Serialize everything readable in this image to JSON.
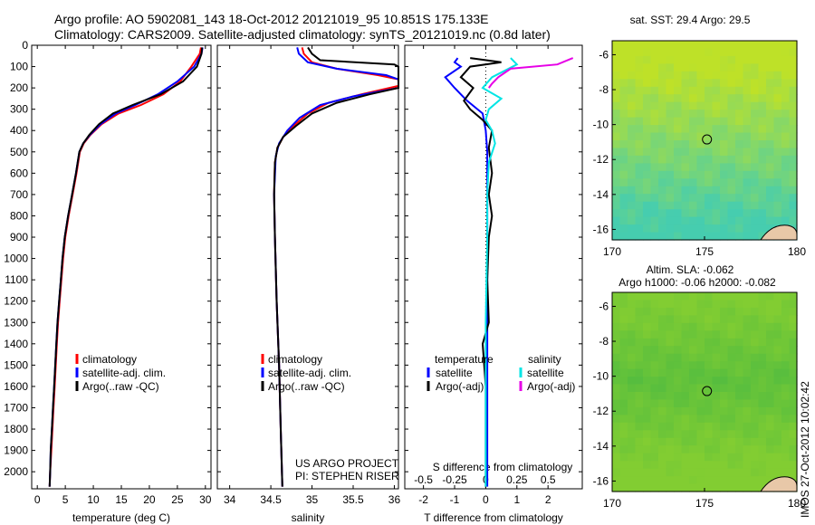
{
  "header": {
    "line1": "Argo profile: AO 5902081_143 18-Oct-2012 20121019_95 10.851S 175.133E",
    "line2": "Climatology: CARS2009. Satellite-adjusted climatology: synTS_20121019.nc (0.8d later)"
  },
  "footer": {
    "imos_stamp": "IMOS 27-Oct-2012 10:02:42"
  },
  "colors": {
    "climatology": "#ff0000",
    "satellite": "#0000ff",
    "argo": "#000000",
    "satellite_s": "#00e5e5",
    "argo_s": "#e600e6"
  },
  "chart_data": [
    {
      "type": "line",
      "name": "temperature-panel",
      "xlabel": "temperature (deg C)",
      "ylabel": "",
      "xlim": [
        -1,
        31
      ],
      "ylim": [
        2080,
        0
      ],
      "xticks": [
        0,
        5,
        10,
        15,
        20,
        25,
        30
      ],
      "yticks": [
        0,
        100,
        200,
        300,
        400,
        500,
        600,
        700,
        800,
        900,
        1000,
        1100,
        1200,
        1300,
        1400,
        1500,
        1600,
        1700,
        1800,
        1900,
        2000
      ],
      "legend": [
        "climatology",
        "satellite-adj. clim.",
        "Argo(..raw -QC)"
      ],
      "series": [
        {
          "name": "climatology",
          "color": "#ff0000",
          "points": [
            [
              29.2,
              10
            ],
            [
              29.0,
              40
            ],
            [
              27.5,
              100
            ],
            [
              25.5,
              170
            ],
            [
              22.5,
              230
            ],
            [
              18.5,
              280
            ],
            [
              14.5,
              320
            ],
            [
              11.5,
              370
            ],
            [
              9.5,
              420
            ],
            [
              8.3,
              460
            ],
            [
              7.6,
              500
            ],
            [
              7.0,
              600
            ],
            [
              6.3,
              700
            ],
            [
              5.6,
              800
            ],
            [
              5.0,
              900
            ],
            [
              4.6,
              1000
            ],
            [
              4.3,
              1100
            ],
            [
              4.0,
              1200
            ],
            [
              3.7,
              1300
            ],
            [
              3.5,
              1400
            ],
            [
              3.3,
              1500
            ],
            [
              3.1,
              1600
            ],
            [
              2.9,
              1700
            ],
            [
              2.7,
              1800
            ],
            [
              2.5,
              1900
            ],
            [
              2.3,
              2000
            ],
            [
              2.2,
              2070
            ]
          ]
        },
        {
          "name": "satellite-adj. clim.",
          "color": "#0000ff",
          "points": [
            [
              29.5,
              10
            ],
            [
              29.3,
              40
            ],
            [
              28.0,
              100
            ],
            [
              25.0,
              170
            ],
            [
              21.5,
              230
            ],
            [
              17.5,
              280
            ],
            [
              14.0,
              320
            ],
            [
              11.3,
              370
            ],
            [
              9.4,
              420
            ],
            [
              8.2,
              460
            ],
            [
              7.5,
              500
            ],
            [
              6.9,
              600
            ],
            [
              6.2,
              700
            ],
            [
              5.5,
              800
            ],
            [
              4.9,
              900
            ],
            [
              4.5,
              1000
            ],
            [
              4.2,
              1100
            ],
            [
              3.9,
              1200
            ],
            [
              3.6,
              1300
            ],
            [
              3.4,
              1400
            ],
            [
              3.2,
              1500
            ],
            [
              3.0,
              1600
            ],
            [
              2.8,
              1700
            ],
            [
              2.6,
              1800
            ],
            [
              2.4,
              1900
            ],
            [
              2.3,
              2000
            ],
            [
              2.2,
              2070
            ]
          ]
        },
        {
          "name": "Argo(..raw -QC)",
          "color": "#000000",
          "points": [
            [
              29.4,
              10
            ],
            [
              29.3,
              40
            ],
            [
              28.5,
              100
            ],
            [
              26.0,
              170
            ],
            [
              22.0,
              230
            ],
            [
              17.0,
              280
            ],
            [
              13.5,
              320
            ],
            [
              11.0,
              370
            ],
            [
              9.3,
              420
            ],
            [
              8.2,
              460
            ],
            [
              7.5,
              500
            ],
            [
              6.9,
              600
            ],
            [
              6.2,
              700
            ],
            [
              5.5,
              800
            ],
            [
              4.9,
              900
            ],
            [
              4.5,
              1000
            ],
            [
              4.2,
              1100
            ],
            [
              3.9,
              1200
            ],
            [
              3.6,
              1300
            ],
            [
              3.4,
              1400
            ],
            [
              3.2,
              1500
            ],
            [
              3.0,
              1600
            ],
            [
              2.8,
              1700
            ],
            [
              2.6,
              1800
            ],
            [
              2.4,
              1900
            ],
            [
              2.3,
              2000
            ],
            [
              2.2,
              2070
            ]
          ]
        }
      ]
    },
    {
      "type": "line",
      "name": "salinity-panel",
      "xlabel": "salinity",
      "ylabel": "",
      "xlim": [
        33.85,
        36.05
      ],
      "ylim": [
        2080,
        0
      ],
      "xticks": [
        34,
        34.5,
        35,
        35.5,
        36
      ],
      "legend": [
        "climatology",
        "satellite-adj. clim.",
        "Argo(..raw -QC)"
      ],
      "annotation": [
        "US ARGO PROJECT",
        "PI: STEPHEN RISER"
      ],
      "series": [
        {
          "name": "climatology",
          "color": "#ff0000",
          "points": [
            [
              34.88,
              10
            ],
            [
              34.9,
              40
            ],
            [
              35.0,
              80
            ],
            [
              35.3,
              110
            ],
            [
              35.8,
              140
            ],
            [
              36.05,
              160
            ],
            [
              36.05,
              190
            ],
            [
              35.6,
              230
            ],
            [
              35.2,
              270
            ],
            [
              34.95,
              320
            ],
            [
              34.8,
              370
            ],
            [
              34.65,
              430
            ],
            [
              34.58,
              480
            ],
            [
              34.55,
              550
            ],
            [
              34.54,
              700
            ],
            [
              34.55,
              900
            ],
            [
              34.57,
              1200
            ],
            [
              34.6,
              1500
            ],
            [
              34.62,
              1800
            ],
            [
              34.64,
              2070
            ]
          ]
        },
        {
          "name": "satellite-adj. clim.",
          "color": "#0000ff",
          "points": [
            [
              34.82,
              10
            ],
            [
              34.84,
              40
            ],
            [
              34.95,
              80
            ],
            [
              35.3,
              110
            ],
            [
              35.9,
              140
            ],
            [
              36.05,
              160
            ],
            [
              36.05,
              200
            ],
            [
              35.5,
              240
            ],
            [
              35.1,
              280
            ],
            [
              34.85,
              340
            ],
            [
              34.7,
              400
            ],
            [
              34.6,
              460
            ],
            [
              34.56,
              520
            ],
            [
              34.54,
              700
            ],
            [
              34.55,
              900
            ],
            [
              34.57,
              1200
            ],
            [
              34.6,
              1500
            ],
            [
              34.62,
              1800
            ],
            [
              34.64,
              2070
            ]
          ]
        },
        {
          "name": "Argo(..raw -QC)",
          "color": "#000000",
          "points": [
            [
              34.95,
              10
            ],
            [
              35.0,
              40
            ],
            [
              35.1,
              70
            ],
            [
              36.0,
              90
            ],
            [
              36.05,
              100
            ],
            [
              36.05,
              200
            ],
            [
              35.7,
              230
            ],
            [
              35.3,
              270
            ],
            [
              35.0,
              320
            ],
            [
              34.8,
              380
            ],
            [
              34.65,
              430
            ],
            [
              34.58,
              480
            ],
            [
              34.55,
              550
            ],
            [
              34.54,
              700
            ],
            [
              34.55,
              900
            ],
            [
              34.57,
              1200
            ],
            [
              34.6,
              1500
            ],
            [
              34.62,
              1800
            ],
            [
              34.64,
              2070
            ]
          ]
        }
      ]
    },
    {
      "type": "line",
      "name": "difference-panel",
      "xlabel": "T difference from climatology",
      "title_bottom": "S difference from climatology",
      "xlim": [
        -2.6,
        3.1
      ],
      "ylim": [
        2080,
        0
      ],
      "xticks": [
        -2,
        -1,
        0,
        1,
        2
      ],
      "xticks_top": [
        -0.5,
        -0.25,
        0,
        0.25,
        0.5
      ],
      "legend_t": [
        "temperature",
        "satellite",
        "Argo(-adj)"
      ],
      "legend_s": [
        "salinity",
        "satellite",
        "Argo(-adj)"
      ],
      "series": [
        {
          "name": "temperature satellite",
          "color": "#0000ff",
          "points": [
            [
              -0.9,
              60
            ],
            [
              -1.0,
              80
            ],
            [
              -0.8,
              100
            ],
            [
              -1.3,
              150
            ],
            [
              -1.0,
              200
            ],
            [
              -0.6,
              260
            ],
            [
              -0.1,
              320
            ],
            [
              0.0,
              400
            ],
            [
              0.05,
              500
            ],
            [
              0.05,
              600
            ],
            [
              0.05,
              800
            ],
            [
              0.05,
              1000
            ],
            [
              0.05,
              1300
            ],
            [
              0.05,
              1600
            ],
            [
              0.05,
              2000
            ],
            [
              0.05,
              2070
            ]
          ]
        },
        {
          "name": "temperature Argo(-adj)",
          "color": "#000000",
          "points": [
            [
              -0.5,
              60
            ],
            [
              0.5,
              80
            ],
            [
              -0.5,
              100
            ],
            [
              -0.8,
              150
            ],
            [
              -0.4,
              200
            ],
            [
              -0.7,
              260
            ],
            [
              -0.5,
              300
            ],
            [
              -0.1,
              350
            ],
            [
              0.2,
              400
            ],
            [
              0.1,
              480
            ],
            [
              0.2,
              600
            ],
            [
              0.1,
              700
            ],
            [
              0.2,
              800
            ],
            [
              0.1,
              900
            ],
            [
              0.05,
              1100
            ],
            [
              0.1,
              1300
            ],
            [
              -0.1,
              1400
            ],
            [
              0.0,
              1600
            ],
            [
              0.0,
              2000
            ],
            [
              0.0,
              2070
            ]
          ]
        },
        {
          "name": "salinity satellite",
          "color": "#00e5e5",
          "points": [
            [
              0.8,
              60
            ],
            [
              1.0,
              90
            ],
            [
              0.2,
              150
            ],
            [
              -0.1,
              200
            ],
            [
              0.5,
              250
            ],
            [
              0.1,
              300
            ],
            [
              0.0,
              350
            ],
            [
              0.2,
              400
            ],
            [
              0.3,
              460
            ],
            [
              0.1,
              550
            ],
            [
              0.05,
              700
            ],
            [
              0.05,
              900
            ],
            [
              0.0,
              1300
            ],
            [
              0.0,
              1700
            ],
            [
              0.0,
              2070
            ]
          ]
        },
        {
          "name": "salinity Argo(-adj)",
          "color": "#e600e6",
          "points": [
            [
              2.8,
              60
            ],
            [
              2.3,
              90
            ],
            [
              0.8,
              110
            ],
            [
              0.4,
              150
            ],
            [
              0.2,
              180
            ],
            [
              0.1,
              200
            ]
          ]
        }
      ]
    },
    {
      "type": "heatmap",
      "name": "sst-map",
      "title": "sat. SST: 29.4 Argo: 29.5",
      "xlim": [
        170,
        180
      ],
      "ylim": [
        -16.6,
        -5.2
      ],
      "xticks": [
        170,
        175,
        180
      ],
      "yticks": [
        -6,
        -8,
        -10,
        -12,
        -14,
        -16
      ],
      "marker": {
        "lon": 175.133,
        "lat": -10.851
      }
    },
    {
      "type": "heatmap",
      "name": "sla-map",
      "title": "Altim. SLA: -0.062",
      "subtitle": "Argo h1000: -0.06 h2000: -0.082",
      "xlim": [
        170,
        180
      ],
      "ylim": [
        -16.6,
        -5.2
      ],
      "xticks": [
        170,
        175,
        180
      ],
      "yticks": [
        -6,
        -8,
        -10,
        -12,
        -14,
        -16
      ],
      "marker": {
        "lon": 175.133,
        "lat": -10.851
      }
    }
  ]
}
